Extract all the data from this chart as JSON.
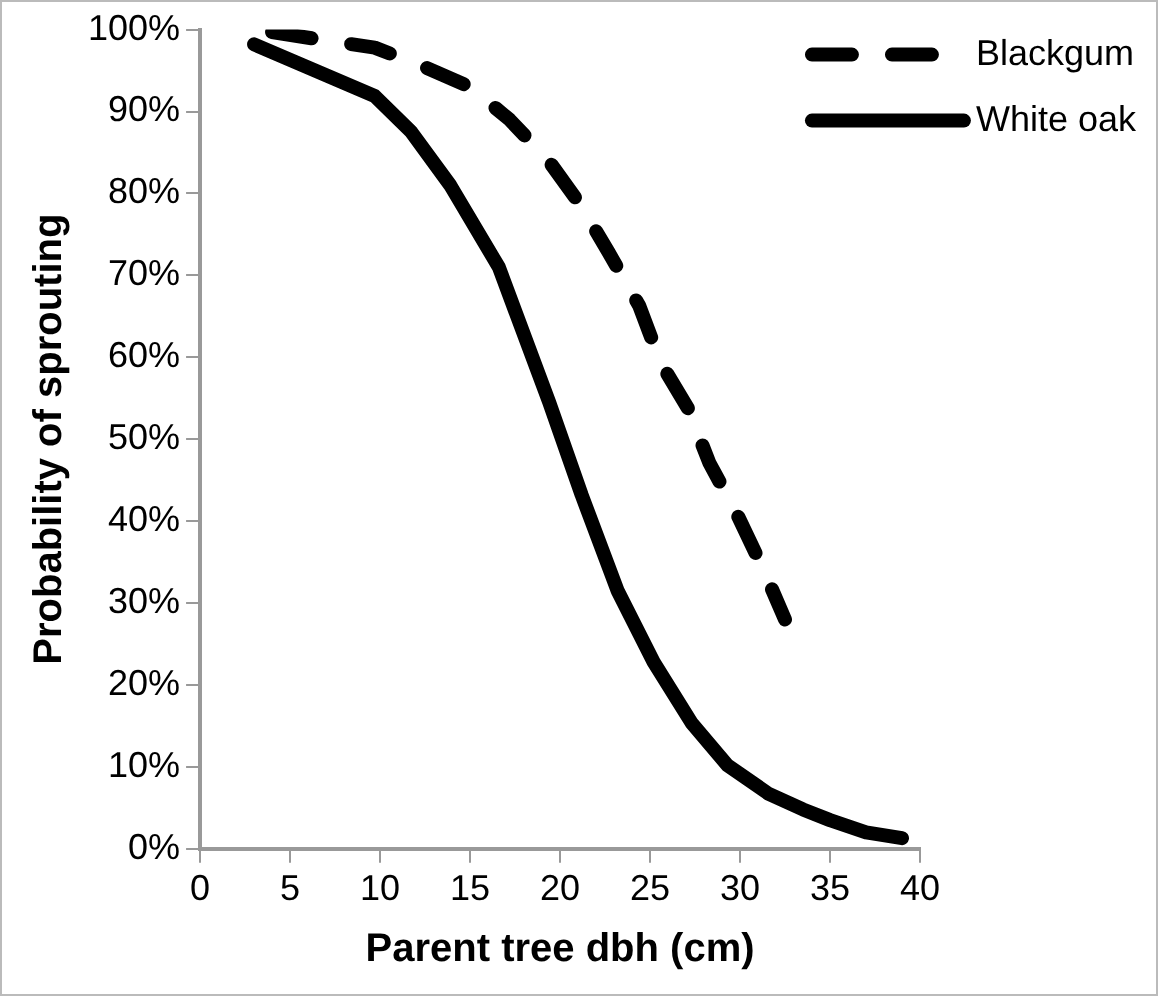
{
  "chart_data": {
    "type": "line",
    "xlabel": "Parent tree dbh (cm)",
    "ylabel": "Probability of sprouting",
    "xlim": [
      0,
      40
    ],
    "xticks": [
      0,
      5,
      10,
      15,
      20,
      25,
      30,
      35,
      40
    ],
    "ylim": [
      0,
      100
    ],
    "yticks": [
      {
        "value": 0,
        "label": "0%"
      },
      {
        "value": 10,
        "label": "10%"
      },
      {
        "value": 20,
        "label": "20%"
      },
      {
        "value": 30,
        "label": "30%"
      },
      {
        "value": 40,
        "label": "40%"
      },
      {
        "value": 50,
        "label": "50%"
      },
      {
        "value": 60,
        "label": "60%"
      },
      {
        "value": 70,
        "label": "70%"
      },
      {
        "value": 80,
        "label": "80%"
      },
      {
        "value": 90,
        "label": "90%"
      },
      {
        "value": 100,
        "label": "100%"
      }
    ],
    "grid": false,
    "legend": "top right",
    "marker": "none",
    "series": [
      {
        "name": "Blackgum",
        "color": "#000000",
        "line_style": "dashed",
        "x": [
          4,
          6.9,
          9.7,
          12.2,
          15,
          17.2,
          19.4,
          21.2,
          22.7,
          24.4,
          25.6,
          27.1,
          28.3,
          29.8,
          31.3,
          32.5
        ],
        "values": [
          99.7,
          98.7,
          97.8,
          95.7,
          93,
          89,
          83.9,
          78.4,
          72.8,
          66.3,
          59.3,
          53.8,
          47.1,
          41,
          34.1,
          28
        ]
      },
      {
        "name": "White oak",
        "color": "#000000",
        "line_style": "solid",
        "x": [
          3,
          9.7,
          11.7,
          13.9,
          16.6,
          19.4,
          21.2,
          23.2,
          25.2,
          27.3,
          29.3,
          31.6,
          33.5,
          35,
          37,
          39
        ],
        "values": [
          98.2,
          91.9,
          87.6,
          81,
          71,
          54.5,
          43.2,
          31.5,
          22.8,
          15.4,
          10.2,
          6.7,
          4.8,
          3.5,
          2,
          1.3
        ]
      }
    ]
  }
}
